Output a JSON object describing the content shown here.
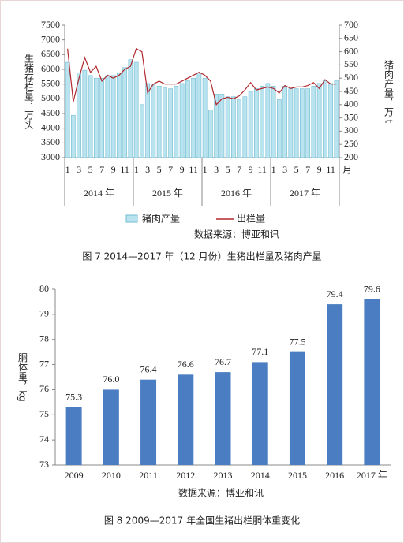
{
  "chart_data": [
    {
      "type": "combo",
      "y_label": "生猪存栏量，万头",
      "y2_label": "猪肉产量，万 t",
      "categories": [
        "1",
        null,
        "3",
        null,
        "5",
        null,
        "7",
        null,
        "9",
        null,
        "11",
        null,
        "1",
        null,
        "3",
        null,
        "5",
        null,
        "7",
        null,
        "9",
        null,
        "11",
        null,
        "1",
        null,
        "3",
        null,
        "5",
        null,
        "7",
        null,
        "9",
        null,
        "11",
        null,
        "1",
        null,
        "3",
        null,
        "5",
        null,
        "7",
        null,
        "9",
        null,
        "11",
        null
      ],
      "x_unit": "月",
      "groups": [
        "2014 年",
        "2015 年",
        "2016 年",
        "2017 年"
      ],
      "ylim": [
        3000,
        7500
      ],
      "yticks": [
        3000,
        3500,
        4000,
        4500,
        5000,
        5500,
        6000,
        6500,
        7000,
        7500
      ],
      "y2lim": [
        200,
        700
      ],
      "y2ticks": [
        200,
        250,
        300,
        350,
        400,
        450,
        500,
        550,
        600,
        650,
        700
      ],
      "series": [
        {
          "name": "猪肉产量",
          "type": "bar",
          "axis": "y2",
          "color": "#b9e3ef",
          "values": [
            560,
            360,
            520,
            530,
            510,
            500,
            500,
            510,
            510,
            520,
            540,
            570,
            560,
            400,
            480,
            475,
            470,
            465,
            460,
            470,
            480,
            490,
            500,
            520,
            500,
            380,
            440,
            440,
            430,
            430,
            420,
            430,
            450,
            460,
            470,
            480,
            470,
            420,
            470,
            460,
            460,
            460,
            460,
            470,
            480,
            490,
            480,
            490
          ]
        },
        {
          "name": "出栏量",
          "type": "line",
          "color": "#b0282e",
          "values": [
            6700,
            4900,
            5700,
            6400,
            5900,
            6100,
            5600,
            5800,
            5700,
            5800,
            6000,
            6100,
            6700,
            6600,
            5200,
            5500,
            5600,
            5500,
            5500,
            5500,
            5600,
            5700,
            5800,
            5900,
            5800,
            5600,
            4800,
            5000,
            5050,
            5000,
            5100,
            5300,
            5550,
            5300,
            5350,
            5400,
            5350,
            5200,
            5450,
            5350,
            5400,
            5400,
            5450,
            5550,
            5350,
            5650,
            5500,
            5500
          ]
        }
      ],
      "source": "数据来源：博亚和讯",
      "caption": "图 7  2014—2017 年（12 月份）生猪出栏量及猪肉产量"
    },
    {
      "type": "bar",
      "y_label": "胴体重，kg",
      "categories": [
        "2009",
        "2010",
        "2011",
        "2012",
        "2013",
        "2014",
        "2015",
        "2016",
        "2017 年"
      ],
      "values": [
        75.3,
        76.0,
        76.4,
        76.6,
        76.7,
        77.1,
        77.5,
        79.4,
        79.6
      ],
      "value_labels": [
        "75.3",
        "76.0",
        "76.4",
        "76.6",
        "76.7",
        "77.1",
        "77.5",
        "79.4",
        "79.6"
      ],
      "color": "#4a7dc2",
      "ylim": [
        73,
        80
      ],
      "yticks": [
        73,
        74,
        75,
        76,
        77,
        78,
        79,
        80
      ],
      "source": "数据来源：博亚和讯",
      "caption": "图 8  2009—2017 年全国生猪出栏胴体重变化"
    }
  ]
}
